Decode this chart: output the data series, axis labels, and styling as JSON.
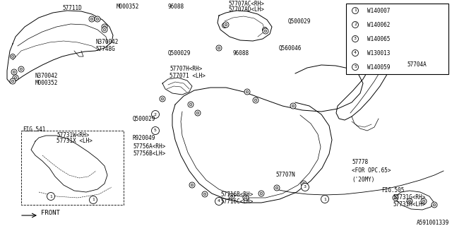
{
  "bg_color": "#ffffff",
  "line_color": "#000000",
  "text_color": "#000000",
  "fig_width": 6.4,
  "fig_height": 3.2,
  "dpi": 100,
  "legend_items": [
    {
      "num": "1",
      "code": "W140007"
    },
    {
      "num": "2",
      "code": "W140062"
    },
    {
      "num": "3",
      "code": "W140065"
    },
    {
      "num": "4",
      "code": "W130013"
    },
    {
      "num": "5",
      "code": "W140059"
    }
  ],
  "watermark": "A591001339"
}
